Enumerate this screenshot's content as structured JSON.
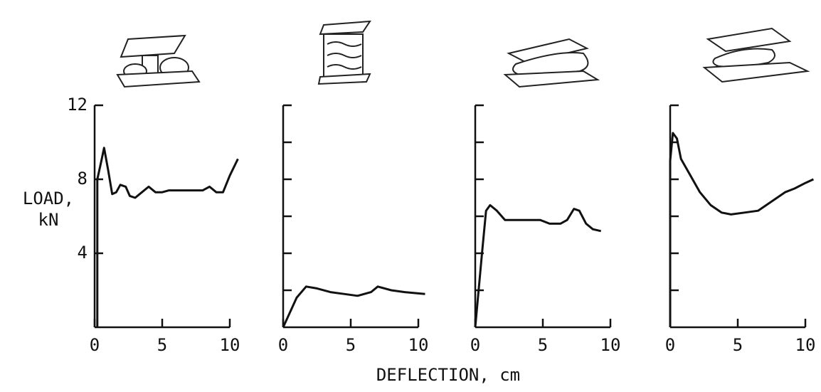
{
  "chart_data": [
    {
      "type": "line",
      "xlim": [
        0,
        10
      ],
      "xticks": [
        0,
        5,
        10
      ],
      "ylim": [
        0,
        12
      ],
      "yticks": [
        4,
        8,
        12
      ],
      "tick_labels": true,
      "x": [
        0.2,
        0.2,
        0.5,
        0.7,
        1.0,
        1.3,
        1.6,
        1.9,
        2.3,
        2.6,
        3.0,
        3.5,
        4.0,
        4.5,
        5.0,
        5.5,
        6.0,
        6.5,
        7.0,
        7.5,
        8.0,
        8.5,
        9.0,
        9.5,
        10.0,
        10.6
      ],
      "values": [
        0,
        8,
        9,
        9.7,
        8.5,
        7.2,
        7.3,
        7.7,
        7.6,
        7.1,
        7.0,
        7.3,
        7.6,
        7.3,
        7.3,
        7.4,
        7.4,
        7.4,
        7.4,
        7.4,
        7.4,
        7.6,
        7.3,
        7.3,
        8.2,
        9.1
      ]
    },
    {
      "type": "line",
      "xlim": [
        0,
        10
      ],
      "xticks": [
        0,
        5,
        10
      ],
      "ylim": [
        0,
        12
      ],
      "yticks": [
        2,
        4,
        6,
        8,
        10,
        12
      ],
      "tick_labels": false,
      "x": [
        0,
        0.5,
        1,
        1.7,
        2.5,
        3.5,
        4.5,
        5.5,
        6.5,
        7,
        8,
        9,
        10.5
      ],
      "values": [
        0,
        0.8,
        1.6,
        2.2,
        2.1,
        1.9,
        1.8,
        1.7,
        1.9,
        2.2,
        2.0,
        1.9,
        1.8
      ]
    },
    {
      "type": "line",
      "xlim": [
        0,
        10
      ],
      "xticks": [
        0,
        5,
        10
      ],
      "ylim": [
        0,
        12
      ],
      "yticks": [
        2,
        4,
        6,
        8,
        10,
        12
      ],
      "tick_labels": false,
      "x": [
        0,
        0.5,
        0.8,
        1.1,
        1.6,
        2.2,
        3,
        4,
        4.8,
        5.5,
        6.3,
        6.8,
        7.3,
        7.7,
        8.2,
        8.7,
        9.3
      ],
      "values": [
        0,
        4,
        6.3,
        6.6,
        6.3,
        5.8,
        5.8,
        5.8,
        5.8,
        5.6,
        5.6,
        5.8,
        6.4,
        6.3,
        5.6,
        5.3,
        5.2
      ]
    },
    {
      "type": "line",
      "xlim": [
        0,
        10
      ],
      "xticks": [
        0,
        5,
        10
      ],
      "ylim": [
        0,
        12
      ],
      "yticks": [
        2,
        4,
        6,
        8,
        10,
        12
      ],
      "tick_labels": false,
      "x": [
        0,
        0,
        0.2,
        0.5,
        0.8,
        1.5,
        2.2,
        3,
        3.8,
        4.5,
        5.5,
        6.5,
        7.5,
        8.5,
        9.2,
        10,
        10.6
      ],
      "values": [
        0,
        9,
        10.5,
        10.2,
        9.1,
        8.2,
        7.3,
        6.6,
        6.2,
        6.1,
        6.2,
        6.3,
        6.8,
        7.3,
        7.5,
        7.8,
        8.0
      ]
    }
  ],
  "ylabel": [
    "LOAD,",
    "kN"
  ],
  "xlabel": "DEFLECTION, cm"
}
